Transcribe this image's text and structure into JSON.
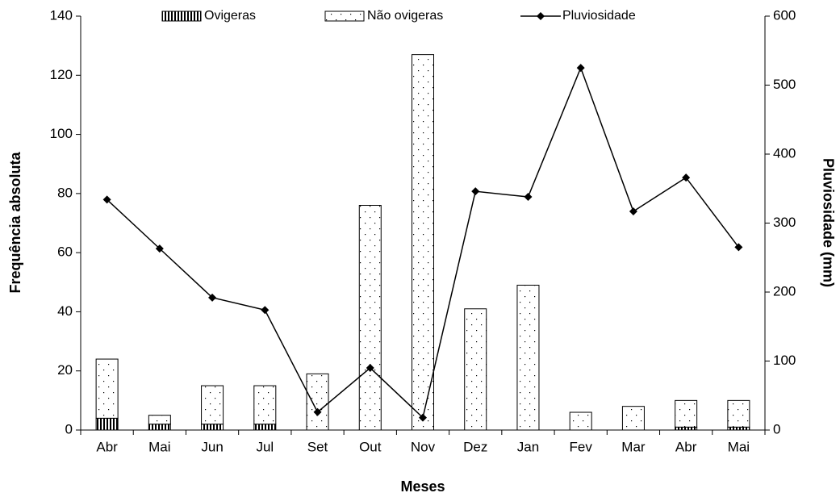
{
  "chart_data": {
    "type": "bar-line",
    "x_label": "Meses",
    "y_label": "Frequência absoluta",
    "y2_label": "Pluviosidade (mm)",
    "categories": [
      "Abr",
      "Mai",
      "Jun",
      "Jul",
      "Set",
      "Out",
      "Nov",
      "Dez",
      "Jan",
      "Fev",
      "Mar",
      "Abr",
      "Mai"
    ],
    "series": [
      {
        "name": "Ovigeras",
        "type": "bar",
        "color": "#000000",
        "pattern": "stripes",
        "values": [
          4,
          2,
          2,
          2,
          0,
          0,
          0,
          0,
          0,
          0,
          0,
          1,
          1
        ]
      },
      {
        "name": "Não ovigeras",
        "type": "bar",
        "color": "#ffffff",
        "pattern": "dots",
        "values": [
          20,
          3,
          13,
          13,
          19,
          76,
          127,
          41,
          49,
          6,
          8,
          9,
          9
        ]
      },
      {
        "name": "Pluviosidade",
        "type": "line",
        "axis": "y2",
        "color": "#000000",
        "values": [
          334,
          263,
          192,
          174,
          26,
          90,
          18,
          346,
          338,
          525,
          317,
          366,
          265
        ]
      }
    ],
    "stacked": true,
    "ylim": [
      0,
      140
    ],
    "yticks": [
      0,
      20,
      40,
      60,
      80,
      100,
      120,
      140
    ],
    "y2lim": [
      0,
      600
    ],
    "y2ticks": [
      0,
      100,
      200,
      300,
      400,
      500,
      600
    ],
    "grid": false,
    "legend": "top"
  }
}
